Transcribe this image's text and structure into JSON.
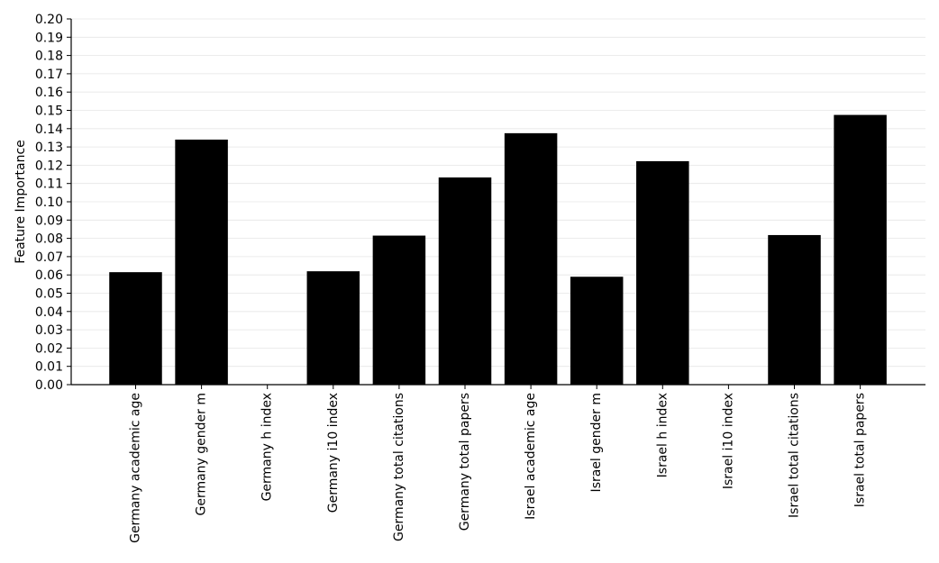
{
  "chart_data": {
    "type": "bar",
    "title": "",
    "xlabel": "",
    "ylabel": "Feature Importance",
    "ylim": [
      0,
      0.2
    ],
    "yticks": [
      "0.00",
      "0.01",
      "0.02",
      "0.03",
      "0.04",
      "0.05",
      "0.06",
      "0.07",
      "0.08",
      "0.09",
      "0.10",
      "0.11",
      "0.12",
      "0.13",
      "0.14",
      "0.15",
      "0.16",
      "0.17",
      "0.18",
      "0.19",
      "0.20"
    ],
    "grid": true,
    "categories": [
      "Germany academic age",
      "Germany gender m",
      "Germany h index",
      "Germany i10 index",
      "Germany total citations",
      "Germany total papers",
      "Israel academic age",
      "Israel gender m",
      "Israel h index",
      "Israel i10 index",
      "Israel total citations",
      "Israel total papers"
    ],
    "values": [
      0.0615,
      0.134,
      0.0,
      0.062,
      0.0815,
      0.1133,
      0.1375,
      0.059,
      0.1222,
      0.0,
      0.0818,
      0.1475
    ],
    "bar_color": "#000000",
    "grid_color": "#e6e6e6"
  }
}
